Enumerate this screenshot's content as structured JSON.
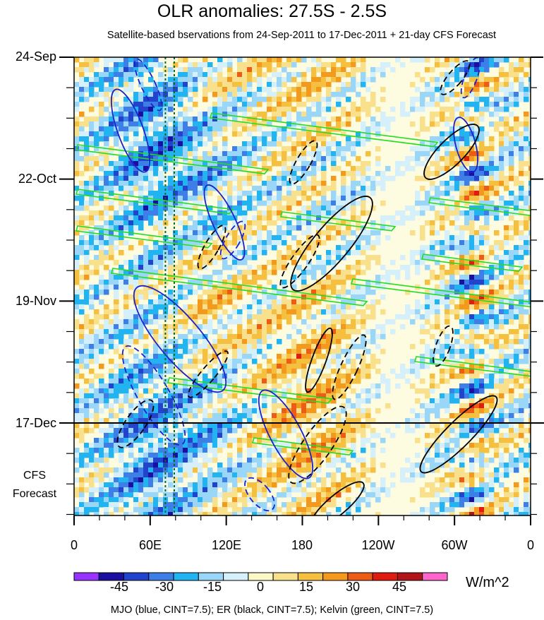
{
  "chart_data": {
    "type": "heatmap",
    "title": "OLR anomalies: 27.5S - 2.5S",
    "subtitle": "Satellite-based bservations from 24-Sep-2011 to 17-Dec-2011 + 21-day CFS Forecast",
    "x_ticks": [
      "0",
      "60E",
      "120E",
      "180",
      "120W",
      "60W",
      "0"
    ],
    "x_range": [
      0,
      360
    ],
    "y_ticks": [
      "24-Sep",
      "22-Oct",
      "19-Nov",
      "17-Dec"
    ],
    "forecast_label_line1": "CFS",
    "forecast_label_line2": "Forecast",
    "colorbar_labels": [
      "-45",
      "-30",
      "-15",
      "0",
      "15",
      "30",
      "45"
    ],
    "colorbar_colors": [
      "#9933ff",
      "#1a0fa0",
      "#2244cc",
      "#3d7fe6",
      "#22b4f0",
      "#99d6f7",
      "#d6f0fb",
      "#fdf8c8",
      "#f8e08c",
      "#f5c040",
      "#f39a1e",
      "#ec5c16",
      "#e01c10",
      "#b01418",
      "#ff66cc"
    ],
    "units": "W/m^2",
    "footnote": "MJO (blue, CINT=7.5); ER (black, CINT=7.5); Kelvin (green, CINT=7.5)",
    "reference_lines_lon": [
      72,
      79
    ],
    "observation_end": "17-Dec"
  }
}
